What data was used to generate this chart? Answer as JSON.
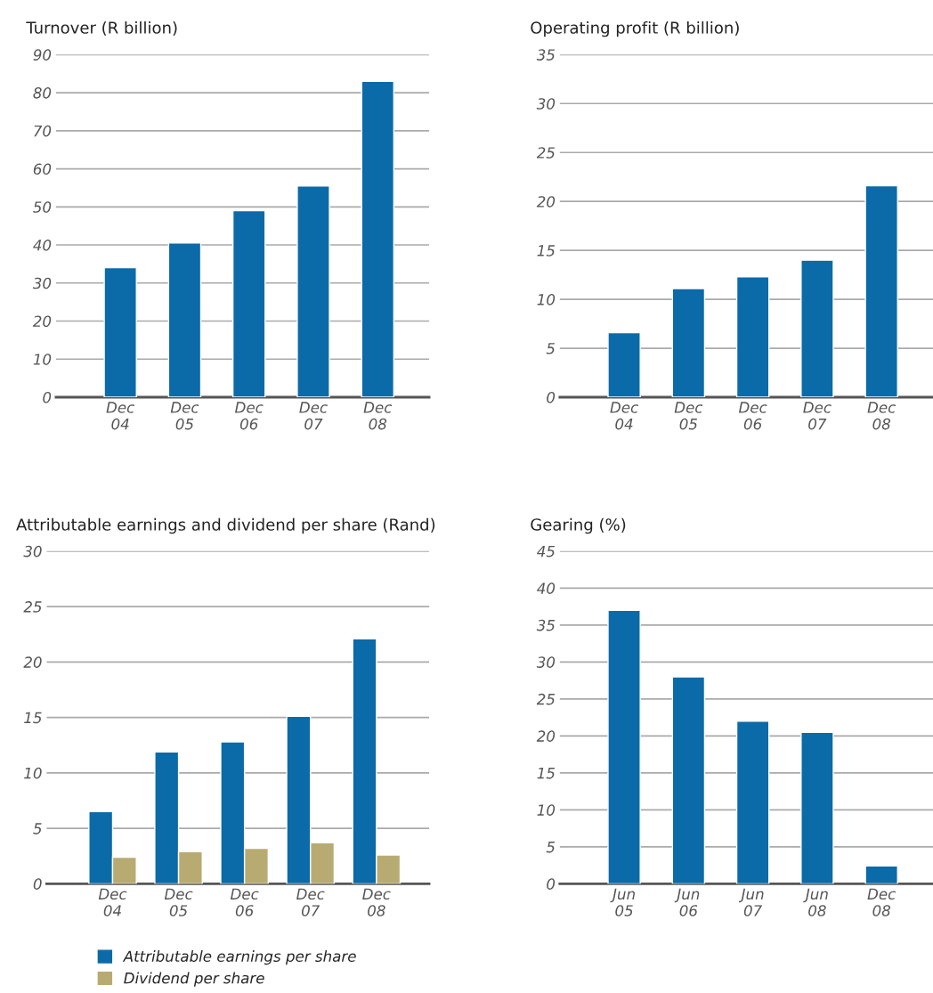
{
  "chart_data": [
    {
      "type": "bar",
      "title": "Turnover (R billion)",
      "categories": [
        "Dec\n04",
        "Dec\n05",
        "Dec\n06",
        "Dec\n07",
        "Dec\n08"
      ],
      "series": [
        {
          "color": "#0b6aa8",
          "values": [
            34,
            40.5,
            49,
            55.5,
            83
          ]
        }
      ],
      "ylim": [
        0,
        90
      ],
      "yticks": [
        0,
        10,
        20,
        30,
        40,
        50,
        60,
        70,
        80,
        90
      ],
      "grid": "y",
      "legend": false
    },
    {
      "type": "bar",
      "title": "Operating profit (R billion)",
      "categories": [
        "Dec\n04",
        "Dec\n05",
        "Dec\n06",
        "Dec\n07",
        "Dec\n08"
      ],
      "series": [
        {
          "color": "#0b6aa8",
          "values": [
            6.6,
            11.1,
            12.3,
            14.0,
            21.6
          ]
        }
      ],
      "ylim": [
        0,
        35
      ],
      "yticks": [
        0,
        5,
        10,
        15,
        20,
        25,
        30,
        35
      ],
      "grid": "y",
      "legend": false
    },
    {
      "type": "bar",
      "title": "Attributable earnings and dividend per share (Rand)",
      "categories": [
        "Dec\n04",
        "Dec\n05",
        "Dec\n06",
        "Dec\n07",
        "Dec\n08"
      ],
      "series": [
        {
          "name": "Attributable earnings per share",
          "color": "#0b6aa8",
          "values": [
            6.5,
            11.9,
            12.8,
            15.1,
            22.1
          ]
        },
        {
          "name": "Dividend per share",
          "color": "#b8ab72",
          "values": [
            2.4,
            2.9,
            3.2,
            3.7,
            2.6
          ]
        }
      ],
      "ylim": [
        0,
        30
      ],
      "yticks": [
        0,
        5,
        10,
        15,
        20,
        25,
        30
      ],
      "grid": "y",
      "legend": "bottom"
    },
    {
      "type": "bar",
      "title": "Gearing (%)",
      "categories": [
        "Jun\n05",
        "Jun\n06",
        "Jun\n07",
        "Jun\n08",
        "Dec\n08"
      ],
      "series": [
        {
          "color": "#0b6aa8",
          "values": [
            37,
            28,
            22,
            20.5,
            2.4
          ]
        }
      ],
      "ylim": [
        0,
        45
      ],
      "yticks": [
        0,
        5,
        10,
        15,
        20,
        25,
        30,
        35,
        40,
        45
      ],
      "grid": "y",
      "legend": false
    }
  ]
}
